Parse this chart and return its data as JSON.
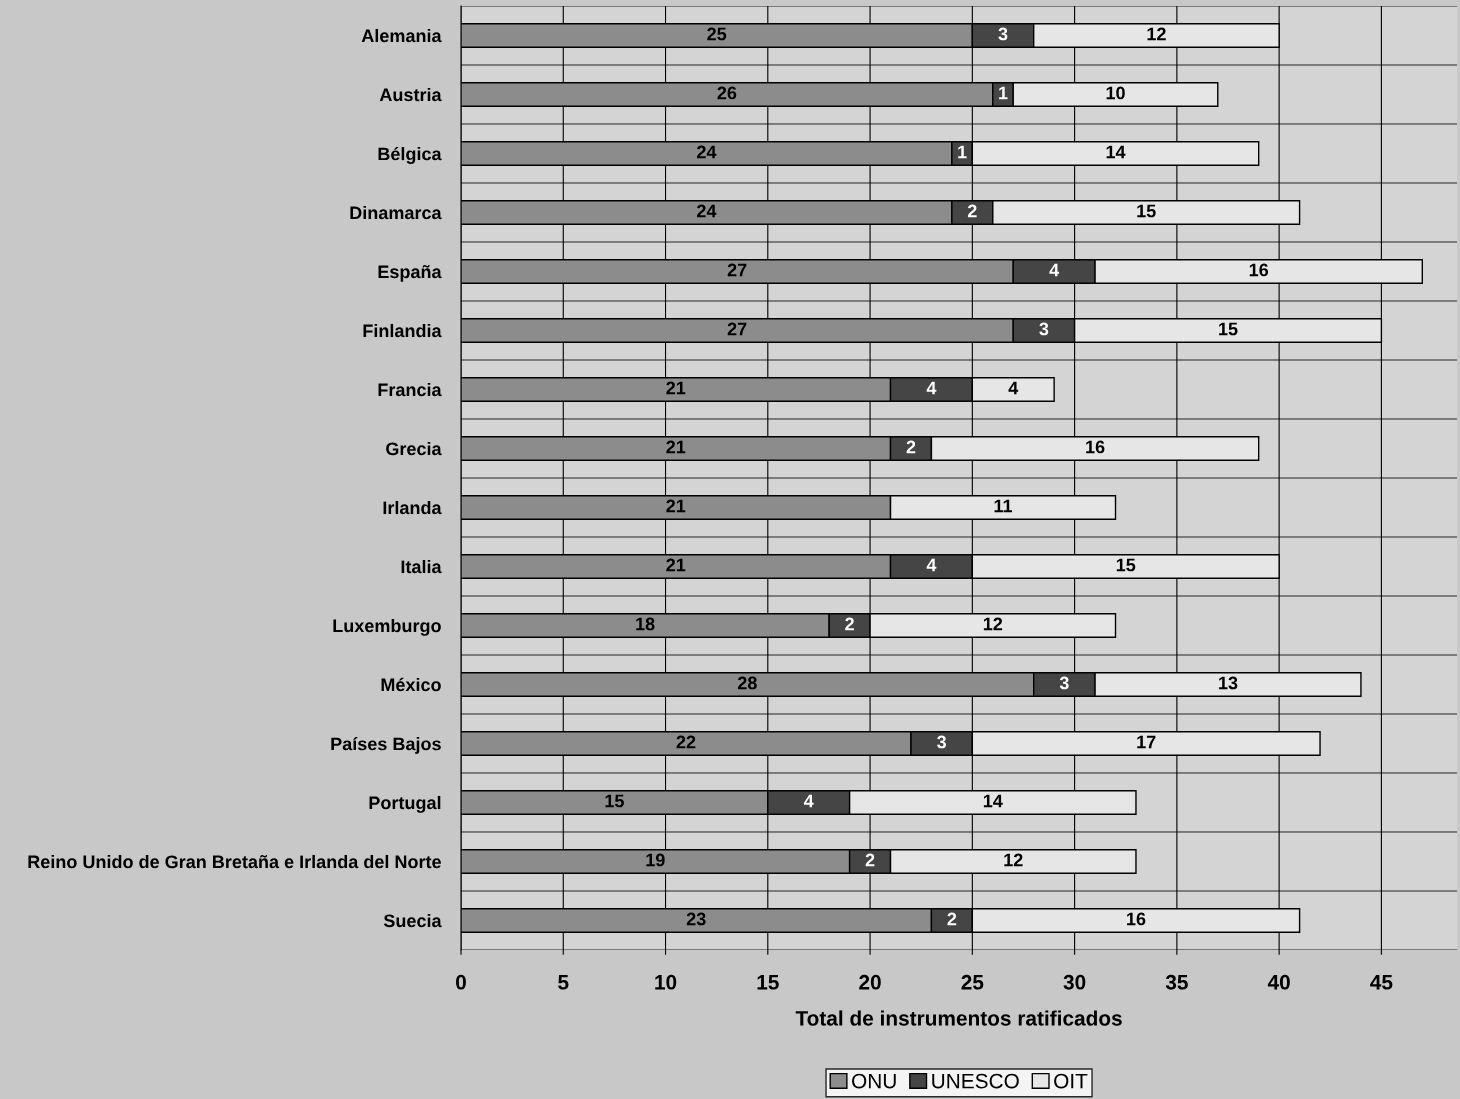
{
  "chart_data": {
    "type": "bar",
    "orientation": "horizontal",
    "stacked": true,
    "categories": [
      "Alemania",
      "Austria",
      "Bélgica",
      "Dinamarca",
      "España",
      "Finlandia",
      "Francia",
      "Grecia",
      "Irlanda",
      "Italia",
      "Luxemburgo",
      "México",
      "Países Bajos",
      "Portugal",
      "Reino Unido de Gran Bretaña e Irlanda del Norte",
      "Suecia"
    ],
    "series": [
      {
        "name": "ONU",
        "color": "#8c8c8c",
        "values": [
          25,
          26,
          24,
          24,
          27,
          27,
          21,
          21,
          21,
          21,
          18,
          28,
          22,
          15,
          19,
          23
        ]
      },
      {
        "name": "UNESCO",
        "color": "#454545",
        "values": [
          3,
          1,
          1,
          2,
          4,
          3,
          4,
          2,
          null,
          4,
          2,
          3,
          3,
          4,
          2,
          2
        ]
      },
      {
        "name": "OIT",
        "color": "#e6e6e6",
        "values": [
          12,
          10,
          14,
          15,
          16,
          15,
          4,
          16,
          11,
          15,
          12,
          13,
          17,
          14,
          12,
          16
        ]
      }
    ],
    "xlabel": "Total de instrumentos ratificados",
    "xlim": [
      0,
      48.7
    ],
    "xticks": [
      0,
      5,
      10,
      15,
      20,
      25,
      30,
      35,
      40,
      45
    ],
    "data_labels": true,
    "grid": true,
    "legend": "bottom"
  }
}
